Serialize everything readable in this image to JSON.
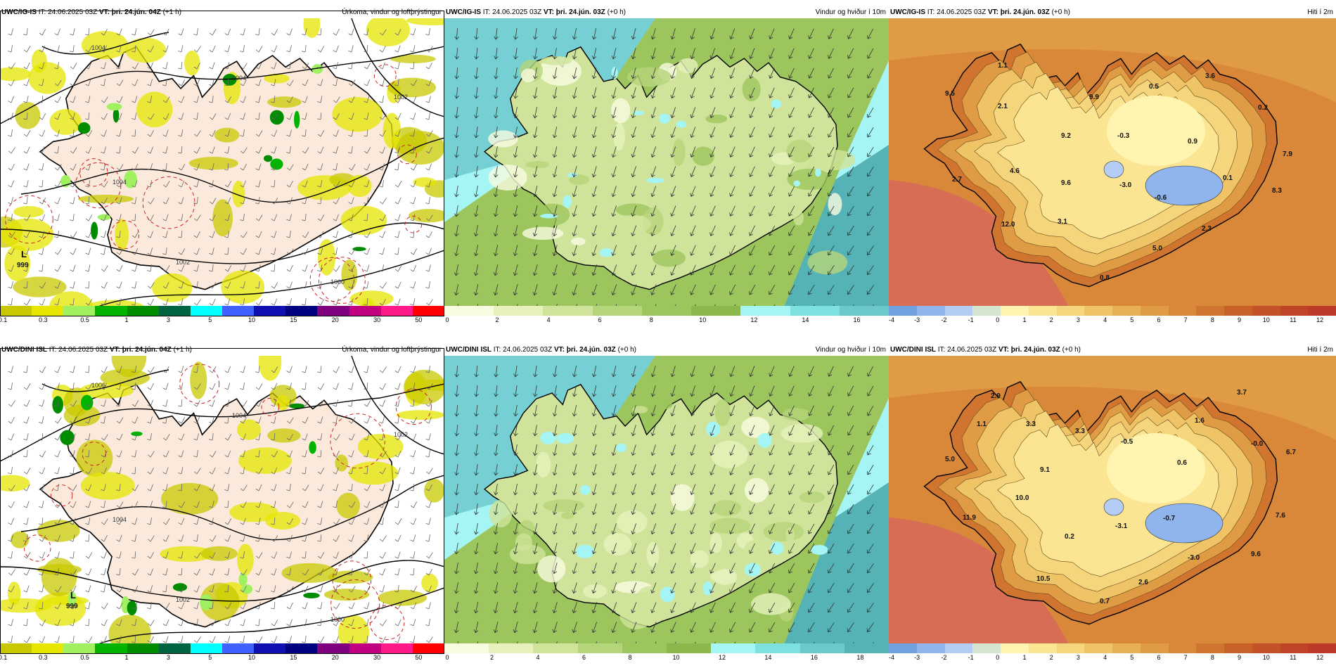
{
  "rows": [
    {
      "panels": [
        {
          "kind": "precip",
          "model": "UWC/IG-IS",
          "it": "IT: 24.06.2025 03Z",
          "vt_label": "VT:",
          "vt": "þri. 24.jún. 04Z",
          "lead": "(+1 h)",
          "title": "Úrkoma, vindur og loftþrýstingur",
          "low_letter": "L",
          "low_value": "999",
          "isobars": [
            "1004",
            "1004",
            "1002",
            "1000",
            "1002",
            "1004"
          ],
          "ticks": [
            "0.1",
            "0.3",
            "0.5",
            "1",
            "3",
            "5",
            "10",
            "15",
            "20",
            "30",
            "50"
          ]
        },
        {
          "kind": "wind",
          "model": "UWC/IG-IS",
          "it": "IT: 24.06.2025 03Z",
          "vt_label": "VT:",
          "vt": "þri. 24.jún. 03Z",
          "lead": "(+0 h)",
          "title": "Vindur og hviður í 10m",
          "ticks": [
            "0",
            "2",
            "4",
            "6",
            "8",
            "10",
            "12",
            "14",
            "16"
          ]
        },
        {
          "kind": "temp",
          "model": "UWC/IG-IS",
          "it": "IT: 24.06.2025 03Z",
          "vt_label": "VT:",
          "vt": "þri. 24.jún. 03Z",
          "lead": "(+0 h)",
          "title": "Hiti í 2m",
          "labels": [
            "1.1",
            "9.5",
            "2.1",
            "9.9",
            "0.5",
            "3.6",
            "0.2",
            "9.2",
            "-0.3",
            "0.9",
            "7.9",
            "4.6",
            "2.7",
            "9.6",
            "-3.0",
            "0.1",
            "-0.6",
            "8.3",
            "3.1",
            "12.0",
            "2.3",
            "5.0",
            "0.8"
          ],
          "ticks": [
            "-4",
            "-3",
            "-2",
            "-1",
            "0",
            "1",
            "2",
            "3",
            "4",
            "5",
            "6",
            "7",
            "8",
            "9",
            "10",
            "11",
            "12"
          ]
        }
      ]
    },
    {
      "panels": [
        {
          "kind": "precip",
          "model": "UWC/DINI ISL",
          "it": "IT: 24.06.2025 03Z",
          "vt_label": "VT:",
          "vt": "þri. 24.jún. 04Z",
          "lead": "(+1 h)",
          "title": "Úrkoma, vindur og loftþrýstingur",
          "low_letter": "L",
          "low_value": "999",
          "isobars": [
            "1004",
            "1004",
            "1002",
            "1000",
            "1002",
            "1006"
          ],
          "ticks": [
            "0.1",
            "0.3",
            "0.5",
            "1",
            "3",
            "5",
            "10",
            "15",
            "20",
            "30",
            "50"
          ]
        },
        {
          "kind": "wind",
          "model": "UWC/DINI ISL",
          "it": "IT: 24.06.2025 03Z",
          "vt_label": "VT:",
          "vt": "þri. 24.jún. 03Z",
          "lead": "(+0 h)",
          "title": "Vindur og hviður í 10m",
          "ticks": [
            "0",
            "2",
            "4",
            "6",
            "8",
            "10",
            "12",
            "14",
            "16",
            "18"
          ]
        },
        {
          "kind": "temp",
          "model": "UWC/DINI ISL",
          "it": "IT: 24.06.2025 03Z",
          "vt_label": "VT:",
          "vt": "þri. 24.jún. 03Z",
          "lead": "(+0 h)",
          "title": "Hiti í 2m",
          "labels": [
            "2.9",
            "3.7",
            "1.1",
            "3.3",
            "3.3",
            "1.6",
            "5.0",
            "-0.5",
            "0.6",
            "-0.0",
            "6.7",
            "9.1",
            "10.0",
            "11.9",
            "-3.1",
            "-0.7",
            "7.6",
            "0.2",
            "-3.0",
            "9.6",
            "10.5",
            "2.6",
            "0.7"
          ],
          "ticks": [
            "-4",
            "-3",
            "-2",
            "-1",
            "0",
            "1",
            "2",
            "3",
            "4",
            "5",
            "6",
            "7",
            "8",
            "9",
            "10",
            "11",
            "12"
          ]
        }
      ]
    }
  ],
  "colors": {
    "precip": [
      "#c8c800",
      "#e6e600",
      "#a0f060",
      "#00b400",
      "#008c00",
      "#006440",
      "#00ffff",
      "#4060ff",
      "#1010b0",
      "#000080",
      "#800080",
      "#c00080",
      "#ff1a8c",
      "#ff0000"
    ],
    "wind": [
      "#f8fbe0",
      "#e6f1bb",
      "#cfe49a",
      "#b5d57a",
      "#9cc65d",
      "#8ab64c",
      "#a6f5f5",
      "#7fe0e0",
      "#6cc8cc",
      "#55b2b5",
      "#3f9ea2",
      "#2b8a8e",
      "#b9a9f5",
      "#9b8ae6"
    ],
    "temp": [
      "#6fa0e0",
      "#8fb5ec",
      "#b3cdf5",
      "#d5e6d0",
      "#fff5b0",
      "#fbe593",
      "#f5d67c",
      "#efc467",
      "#e8b054",
      "#e09c45",
      "#d88838",
      "#d0752f",
      "#c9622a",
      "#c45228",
      "#c04428",
      "#bb3a2a"
    ],
    "land_precip": "#fbe9dc",
    "sea_temp": "#d9653c",
    "sea_temp_far": "#d86d55"
  }
}
